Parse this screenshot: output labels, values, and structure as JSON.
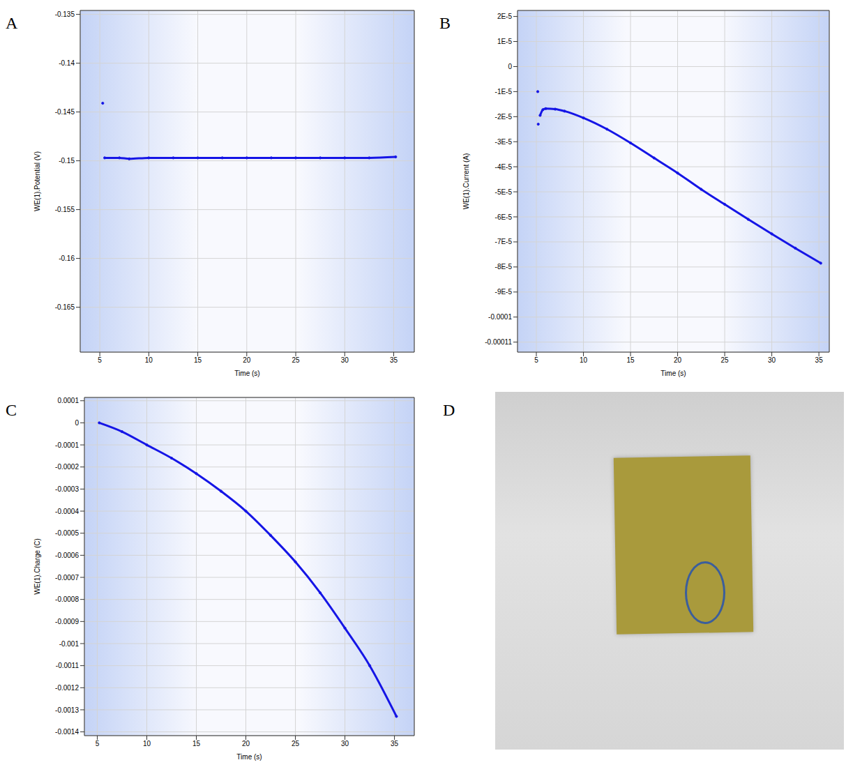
{
  "chart_data": [
    {
      "panel": "A",
      "type": "line",
      "x_label": "Time (s)",
      "y_label": "WE(1).Potential (V)",
      "color": "#1515e6",
      "marker": "circle",
      "grid": true,
      "x": [
        5.3,
        5.35,
        5.5,
        7,
        8,
        10,
        12.5,
        15,
        17.5,
        20,
        22.5,
        25,
        27.5,
        30,
        32.5,
        35.2
      ],
      "values": [
        -0.1441,
        null,
        -0.1497,
        -0.1497,
        -0.1498,
        -0.1497,
        -0.1497,
        -0.1497,
        -0.1497,
        -0.1497,
        -0.1497,
        -0.1497,
        -0.1497,
        -0.1497,
        -0.1497,
        -0.1496
      ],
      "xlim": [
        3.0,
        37.1
      ],
      "xticks": [
        5,
        10,
        15,
        20,
        25,
        30,
        35
      ],
      "ylim": [
        -0.1696,
        -0.1346
      ],
      "yticks": [
        -0.165,
        -0.16,
        -0.155,
        -0.15,
        -0.145,
        -0.14,
        -0.135
      ]
    },
    {
      "panel": "B",
      "type": "line",
      "x_label": "Time (s)",
      "y_label": "WE(1).Current (A)",
      "color": "#1515e6",
      "marker": "circle",
      "grid": true,
      "x": [
        5.15,
        5.15,
        5.2,
        5.2,
        5.4,
        5.7,
        6,
        7,
        8,
        10,
        12.5,
        15,
        17.5,
        20,
        22.5,
        25,
        27.5,
        30,
        32.5,
        35.2
      ],
      "values": [
        -1e-05,
        null,
        -2.3e-05,
        null,
        -1.95e-05,
        -1.72e-05,
        -1.68e-05,
        -1.7e-05,
        -1.78e-05,
        -2.05e-05,
        -2.5e-05,
        -3.05e-05,
        -3.65e-05,
        -4.25e-05,
        -4.9e-05,
        -5.5e-05,
        -6.1e-05,
        -6.68e-05,
        -7.25e-05,
        -7.85e-05
      ],
      "xlim": [
        3.0,
        36.1
      ],
      "xticks": [
        5,
        10,
        15,
        20,
        25,
        30,
        35
      ],
      "ylim": [
        -0.000114,
        2.24e-05
      ],
      "yticks": [
        {
          "value": -0.00011,
          "label": "-0.00011"
        },
        {
          "value": -0.0001,
          "label": "-0.0001"
        },
        {
          "value": -9e-05,
          "label": "-9E-5"
        },
        {
          "value": -8e-05,
          "label": "-8E-5"
        },
        {
          "value": -7e-05,
          "label": "-7E-5"
        },
        {
          "value": -6e-05,
          "label": "-6E-5"
        },
        {
          "value": -5e-05,
          "label": "-5E-5"
        },
        {
          "value": -4e-05,
          "label": "-4E-5"
        },
        {
          "value": -3e-05,
          "label": "-3E-5"
        },
        {
          "value": -2e-05,
          "label": "-2E-5"
        },
        {
          "value": -1e-05,
          "label": "-1E-5"
        },
        0,
        {
          "value": 1e-05,
          "label": "1E-5"
        },
        {
          "value": 2e-05,
          "label": "2E-5"
        }
      ]
    },
    {
      "panel": "C",
      "type": "line",
      "x_label": "Time (s)",
      "y_label": "WE(1).Charge (C)",
      "color": "#1515e6",
      "marker": "circle",
      "grid": true,
      "x": [
        5.2,
        7.5,
        10,
        12.5,
        15,
        17.5,
        20,
        22.5,
        25,
        27.5,
        30,
        32.5,
        35.2
      ],
      "values": [
        0,
        -4e-05,
        -0.0001,
        -0.00016,
        -0.00023,
        -0.00031,
        -0.0004,
        -0.00051,
        -0.00063,
        -0.00077,
        -0.00093,
        -0.0011,
        -0.00133
      ],
      "xlim": [
        3.7,
        37.0
      ],
      "xticks": [
        5,
        10,
        15,
        20,
        25,
        30,
        35
      ],
      "ylim": [
        -0.001417,
        0.000115
      ],
      "yticks": [
        -0.0014,
        -0.0013,
        -0.0012,
        -0.0011,
        -0.001,
        -0.0009,
        -0.0008,
        -0.0007,
        -0.0006,
        -0.0005,
        -0.0004,
        -0.0003,
        -0.0002,
        -0.0001,
        0,
        0.0001
      ]
    },
    {
      "panel": "D",
      "type": "image"
    }
  ]
}
